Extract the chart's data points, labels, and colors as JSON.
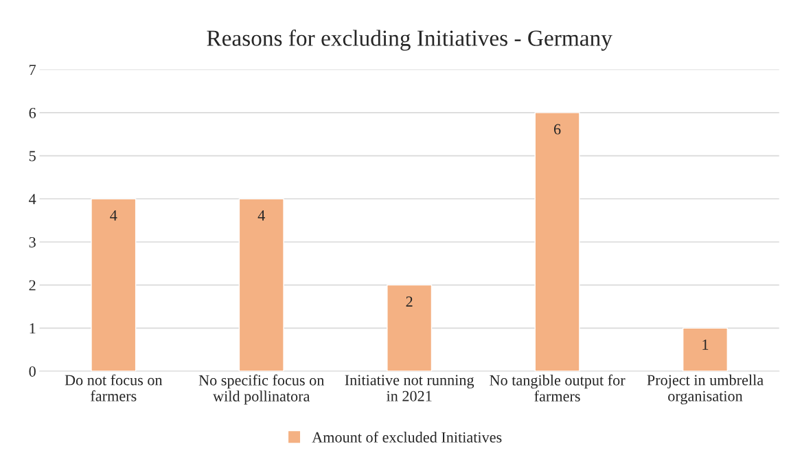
{
  "chart_data": {
    "type": "bar",
    "title": "Reasons for excluding Initiatives - Germany",
    "categories": [
      "Do not focus on\nfarmers",
      "No specific focus on\nwild pollinatora",
      "Initiative not running\nin 2021",
      "No tangible output for\nfarmers",
      "Project in umbrella\norganisation"
    ],
    "series": [
      {
        "name": "Amount of excluded Initiatives",
        "color": "#f4b183",
        "values": [
          4,
          4,
          2,
          6,
          1
        ]
      }
    ],
    "ylim": [
      0,
      7
    ],
    "yticks": [
      0,
      1,
      2,
      3,
      4,
      5,
      6,
      7
    ],
    "grid": "y",
    "legend": "bottom",
    "data_labels": true
  }
}
